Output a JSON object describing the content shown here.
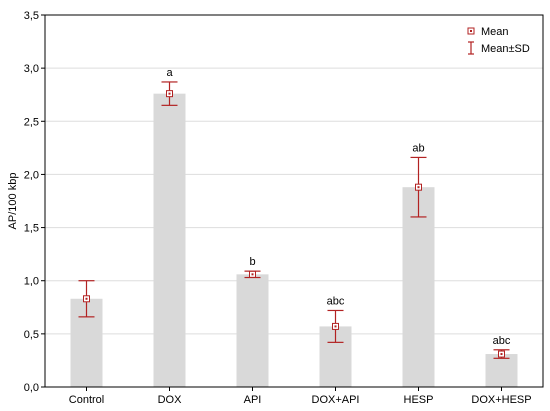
{
  "chart_data": {
    "type": "bar",
    "ylabel": "AP/100 kbp",
    "xlabel": "",
    "ylim": [
      0,
      3.5
    ],
    "yticks": [
      "0,0",
      "0,5",
      "1,0",
      "1,5",
      "2,0",
      "2,5",
      "3,0",
      "3,5"
    ],
    "categories": [
      "Control",
      "DOX",
      "API",
      "DOX+API",
      "HESP",
      "DOX+HESP"
    ],
    "series": [
      {
        "name": "Mean",
        "values": [
          0.83,
          2.76,
          1.06,
          0.57,
          1.88,
          0.31
        ],
        "sd": [
          0.17,
          0.11,
          0.03,
          0.15,
          0.28,
          0.04
        ]
      }
    ],
    "annotations": [
      "",
      "a",
      "b",
      "abc",
      "ab",
      "abc"
    ],
    "legend": {
      "position": "top-right",
      "entries": [
        "Mean",
        "Mean±SD"
      ]
    },
    "grid": true,
    "colors": {
      "bar": "#d9d9d9",
      "marker": "#b22222",
      "grid": "#dddddd",
      "axis": "#000000"
    }
  }
}
